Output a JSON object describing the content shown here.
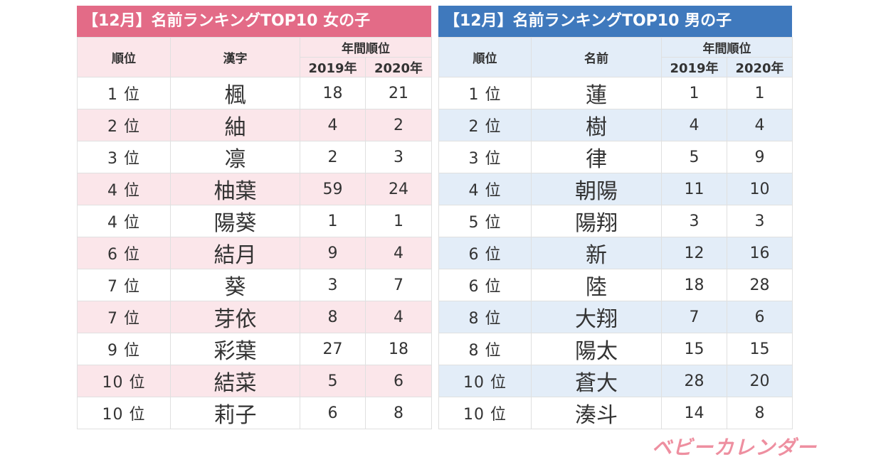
{
  "colors": {
    "girls_banner": "#e36b87",
    "girls_header": "#fbe6ea",
    "girls_alt": "#fbe6ea",
    "boys_banner": "#3f79bd",
    "boys_header": "#e3edf8",
    "boys_alt": "#e3edf8"
  },
  "girls": {
    "title": "【12月】名前ランキングTOP10 女の子",
    "col_rank": "順位",
    "col_name": "漢字",
    "col_annual": "年間順位",
    "col_y1": "2019年",
    "col_y2": "2020年",
    "rows": [
      {
        "rank": "1 位",
        "name": "楓",
        "y2019": "18",
        "y2020": "21"
      },
      {
        "rank": "2 位",
        "name": "紬",
        "y2019": "4",
        "y2020": "2"
      },
      {
        "rank": "3 位",
        "name": "凛",
        "y2019": "2",
        "y2020": "3"
      },
      {
        "rank": "4 位",
        "name": "柚葉",
        "y2019": "59",
        "y2020": "24"
      },
      {
        "rank": "4 位",
        "name": "陽葵",
        "y2019": "1",
        "y2020": "1"
      },
      {
        "rank": "6 位",
        "name": "結月",
        "y2019": "9",
        "y2020": "4"
      },
      {
        "rank": "7 位",
        "name": "葵",
        "y2019": "3",
        "y2020": "7"
      },
      {
        "rank": "7 位",
        "name": "芽依",
        "y2019": "8",
        "y2020": "4"
      },
      {
        "rank": "9 位",
        "name": "彩葉",
        "y2019": "27",
        "y2020": "18"
      },
      {
        "rank": "10 位",
        "name": "結菜",
        "y2019": "5",
        "y2020": "6"
      },
      {
        "rank": "10 位",
        "name": "莉子",
        "y2019": "6",
        "y2020": "8"
      }
    ]
  },
  "boys": {
    "title": "【12月】名前ランキングTOP10 男の子",
    "col_rank": "順位",
    "col_name": "名前",
    "col_annual": "年間順位",
    "col_y1": "2019年",
    "col_y2": "2020年",
    "rows": [
      {
        "rank": "1 位",
        "name": "蓮",
        "y2019": "1",
        "y2020": "1"
      },
      {
        "rank": "2 位",
        "name": "樹",
        "y2019": "4",
        "y2020": "4"
      },
      {
        "rank": "3 位",
        "name": "律",
        "y2019": "5",
        "y2020": "9"
      },
      {
        "rank": "4 位",
        "name": "朝陽",
        "y2019": "11",
        "y2020": "10"
      },
      {
        "rank": "5 位",
        "name": "陽翔",
        "y2019": "3",
        "y2020": "3"
      },
      {
        "rank": "6 位",
        "name": "新",
        "y2019": "12",
        "y2020": "16"
      },
      {
        "rank": "6 位",
        "name": "陸",
        "y2019": "18",
        "y2020": "28"
      },
      {
        "rank": "8 位",
        "name": "大翔",
        "y2019": "7",
        "y2020": "6"
      },
      {
        "rank": "8 位",
        "name": "陽太",
        "y2019": "15",
        "y2020": "15"
      },
      {
        "rank": "10 位",
        "name": "蒼大",
        "y2019": "28",
        "y2020": "20"
      },
      {
        "rank": "10 位",
        "name": "湊斗",
        "y2019": "14",
        "y2020": "8"
      }
    ]
  },
  "logo_text": "ベビーカレンダー"
}
